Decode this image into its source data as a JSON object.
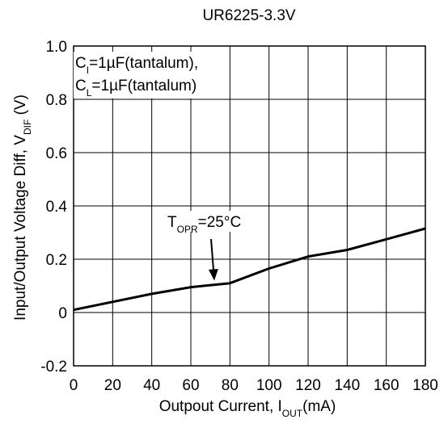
{
  "chart_data": {
    "type": "line",
    "title": "UR6225-3.3V",
    "xlabel": {
      "prefix": "Outpout Current, I",
      "sub": "OUT",
      "suffix": "(mA)"
    },
    "ylabel": {
      "prefix": "Input/Output Voltage Diff, V",
      "sub": "DIF",
      "suffix": " (V)"
    },
    "xlim": [
      0,
      180
    ],
    "ylim": [
      -0.2,
      1.0
    ],
    "x_ticks": [
      0,
      20,
      40,
      60,
      80,
      100,
      120,
      140,
      160,
      180
    ],
    "y_ticks": [
      -0.2,
      0,
      0.2,
      0.4,
      0.6,
      0.8,
      1.0
    ],
    "x_tick_labels": [
      "0",
      "20",
      "40",
      "60",
      "80",
      "100",
      "120",
      "140",
      "160",
      "180"
    ],
    "y_tick_labels": [
      "-0.2",
      "0",
      "0.2",
      "0.4",
      "0.6",
      "0.8",
      "1.0"
    ],
    "grid": true,
    "series": [
      {
        "x": [
          0,
          20,
          40,
          60,
          80,
          100,
          120,
          140,
          160,
          180
        ],
        "y": [
          0.01,
          0.04,
          0.07,
          0.095,
          0.11,
          0.165,
          0.21,
          0.235,
          0.275,
          0.315
        ]
      }
    ],
    "condition_box": {
      "line1": {
        "prefix": "C",
        "sub": "I",
        "suffix": "=1µF(tantalum),"
      },
      "line2": {
        "prefix": "C",
        "sub": "L",
        "suffix": "=1µF(tantalum)"
      }
    },
    "annotation": {
      "prefix": "T",
      "sub": "OPR",
      "suffix": "=25°C",
      "arrow_target": {
        "x": 72,
        "y": 0.12
      }
    }
  }
}
